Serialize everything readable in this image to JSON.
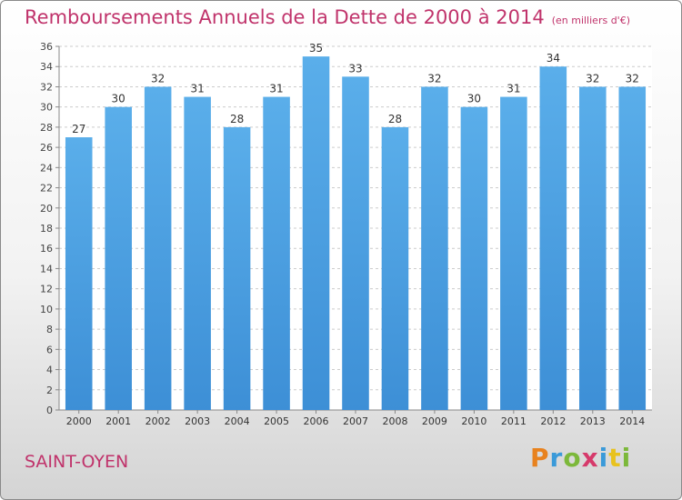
{
  "header": {
    "title": "Remboursements Annuels de la Dette de 2000 à 2014",
    "subtitle": "(en milliers d'€)"
  },
  "footer": {
    "commune": "SAINT-OYEN",
    "logo_text": "Proxiti"
  },
  "colors": {
    "bar": "#3d8fd6",
    "bar_light": "#5aaeea",
    "title": "#c0336b",
    "grid": "#cccccc"
  },
  "chart_data": {
    "type": "bar",
    "categories": [
      "2000",
      "2001",
      "2002",
      "2003",
      "2004",
      "2005",
      "2006",
      "2007",
      "2008",
      "2009",
      "2010",
      "2011",
      "2012",
      "2013",
      "2014"
    ],
    "values": [
      27,
      30,
      32,
      31,
      28,
      31,
      35,
      33,
      28,
      32,
      30,
      31,
      34,
      32,
      32
    ],
    "ylim": [
      0,
      36
    ],
    "yticks": [
      0,
      2,
      4,
      6,
      8,
      10,
      12,
      14,
      16,
      18,
      20,
      22,
      24,
      26,
      28,
      30,
      32,
      34,
      36
    ],
    "grid": true,
    "data_labels": true
  }
}
